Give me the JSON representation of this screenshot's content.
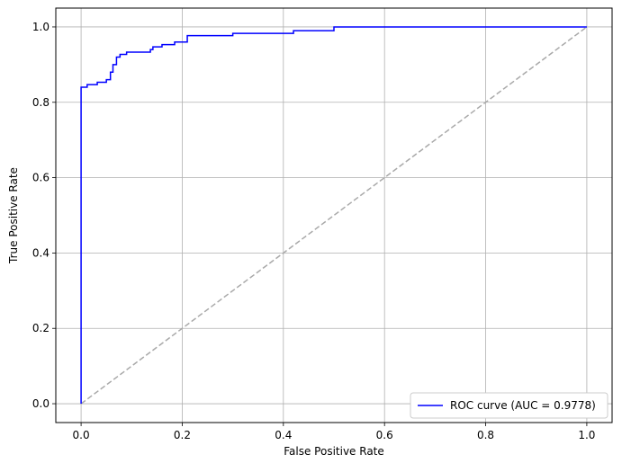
{
  "chart_data": {
    "type": "line",
    "title": "",
    "xlabel": "False Positive Rate",
    "ylabel": "True Positive Rate",
    "xlim": [
      -0.05,
      1.05
    ],
    "ylim": [
      -0.05,
      1.05
    ],
    "x_ticks": [
      0.0,
      0.2,
      0.4,
      0.6,
      0.8,
      1.0
    ],
    "y_ticks": [
      0.0,
      0.2,
      0.4,
      0.6,
      0.8,
      1.0
    ],
    "x_tick_labels": [
      "0.0",
      "0.2",
      "0.4",
      "0.6",
      "0.8",
      "1.0"
    ],
    "y_tick_labels": [
      "0.0",
      "0.2",
      "0.4",
      "0.6",
      "0.8",
      "1.0"
    ],
    "grid": true,
    "legend_position": "lower-right",
    "series": [
      {
        "name": "ROC curve (AUC = 0.9778)",
        "color": "#0000ff",
        "style": "step",
        "points": [
          [
            0.0,
            0.0
          ],
          [
            0.0,
            0.84
          ],
          [
            0.012,
            0.84
          ],
          [
            0.012,
            0.847
          ],
          [
            0.032,
            0.847
          ],
          [
            0.032,
            0.853
          ],
          [
            0.05,
            0.853
          ],
          [
            0.05,
            0.86
          ],
          [
            0.058,
            0.86
          ],
          [
            0.058,
            0.88
          ],
          [
            0.063,
            0.88
          ],
          [
            0.063,
            0.9
          ],
          [
            0.07,
            0.9
          ],
          [
            0.07,
            0.92
          ],
          [
            0.077,
            0.92
          ],
          [
            0.077,
            0.927
          ],
          [
            0.09,
            0.927
          ],
          [
            0.09,
            0.933
          ],
          [
            0.137,
            0.933
          ],
          [
            0.137,
            0.94
          ],
          [
            0.142,
            0.94
          ],
          [
            0.142,
            0.947
          ],
          [
            0.16,
            0.947
          ],
          [
            0.16,
            0.953
          ],
          [
            0.185,
            0.953
          ],
          [
            0.185,
            0.96
          ],
          [
            0.21,
            0.96
          ],
          [
            0.21,
            0.977
          ],
          [
            0.3,
            0.977
          ],
          [
            0.3,
            0.983
          ],
          [
            0.42,
            0.983
          ],
          [
            0.42,
            0.99
          ],
          [
            0.5,
            0.99
          ],
          [
            0.5,
            1.0
          ],
          [
            1.0,
            1.0
          ]
        ]
      },
      {
        "name": "",
        "color": "#a9a9a9",
        "style": "dashed",
        "points": [
          [
            0.0,
            0.0
          ],
          [
            1.0,
            1.0
          ]
        ]
      }
    ]
  }
}
